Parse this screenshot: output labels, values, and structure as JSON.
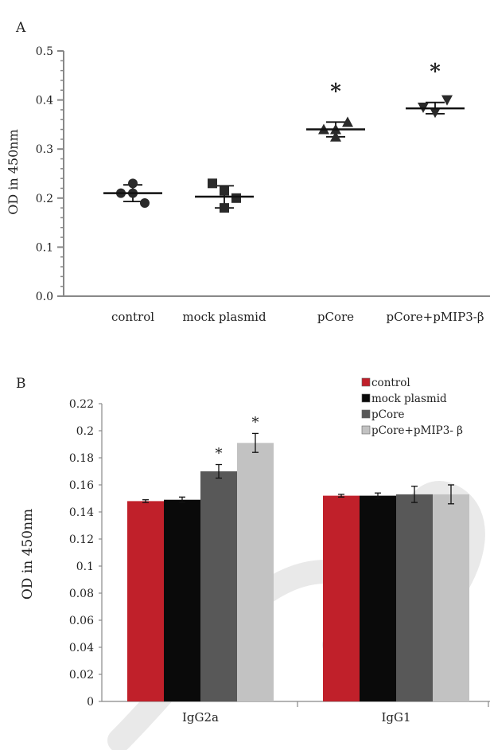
{
  "panel_a": {
    "panel_label": "A",
    "ylabel": "OD in 450nm",
    "significance_mark": "*"
  },
  "panel_b": {
    "panel_label": "B",
    "ylabel": "OD in 450nm",
    "significance_mark": "*"
  },
  "colors": {
    "axis": "#888888",
    "text": "#222222",
    "control": "#c0202a",
    "mock_plasmid": "#0a0a0a",
    "pcore": "#585858",
    "pcore_pmip3b": "#c2c2c2"
  },
  "chart_data": [
    {
      "type": "scatter",
      "title": "",
      "xlabel": "",
      "ylabel": "OD in 450nm",
      "ylim": [
        0.0,
        0.5
      ],
      "yticks": [
        "0.0",
        "0.1",
        "0.2",
        "0.3",
        "0.4",
        "0.5"
      ],
      "grid": false,
      "categories": [
        "control",
        "mock plasmid",
        "pCore",
        "pCore+pMIP3-β"
      ],
      "groups": [
        {
          "category": "control",
          "marker": "circle",
          "points": [
            0.21,
            0.23,
            0.19,
            0.21
          ],
          "mean": 0.21,
          "sd_low": 0.193,
          "sd_high": 0.227,
          "significant": false
        },
        {
          "category": "mock plasmid",
          "marker": "square",
          "points": [
            0.23,
            0.18,
            0.2,
            0.215
          ],
          "mean": 0.203,
          "sd_low": 0.18,
          "sd_high": 0.225,
          "significant": false
        },
        {
          "category": "pCore",
          "marker": "triangle-up",
          "points": [
            0.34,
            0.325,
            0.355,
            0.34
          ],
          "mean": 0.34,
          "sd_low": 0.325,
          "sd_high": 0.355,
          "significant": true
        },
        {
          "category": "pCore+pMIP3-β",
          "marker": "triangle-down",
          "points": [
            0.385,
            0.375,
            0.4,
            0.375
          ],
          "mean": 0.383,
          "sd_low": 0.372,
          "sd_high": 0.395,
          "significant": true
        }
      ]
    },
    {
      "type": "bar",
      "title": "",
      "xlabel": "",
      "ylabel": "OD in 450nm",
      "ylim": [
        0,
        0.22
      ],
      "yticks": [
        "0",
        "0.02",
        "0.04",
        "0.06",
        "0.08",
        "0.1",
        "0.12",
        "0.14",
        "0.16",
        "0.18",
        "0.2",
        "0.22"
      ],
      "grid": false,
      "legend_position": "top-right",
      "categories": [
        "IgG2a",
        "IgG1"
      ],
      "series": [
        {
          "name": "control",
          "color": "#c0202a",
          "values": [
            0.148,
            0.152
          ],
          "errors": [
            0.001,
            0.001
          ],
          "significant": [
            false,
            false
          ]
        },
        {
          "name": "mock plasmid",
          "color": "#0a0a0a",
          "values": [
            0.149,
            0.152
          ],
          "errors": [
            0.002,
            0.002
          ],
          "significant": [
            false,
            false
          ]
        },
        {
          "name": "pCore",
          "color": "#585858",
          "values": [
            0.17,
            0.153
          ],
          "errors": [
            0.005,
            0.006
          ],
          "significant": [
            true,
            false
          ]
        },
        {
          "name": "pCore+pMIP3- β",
          "color": "#c2c2c2",
          "values": [
            0.191,
            0.153
          ],
          "errors": [
            0.007,
            0.007
          ],
          "significant": [
            true,
            false
          ]
        }
      ]
    }
  ]
}
